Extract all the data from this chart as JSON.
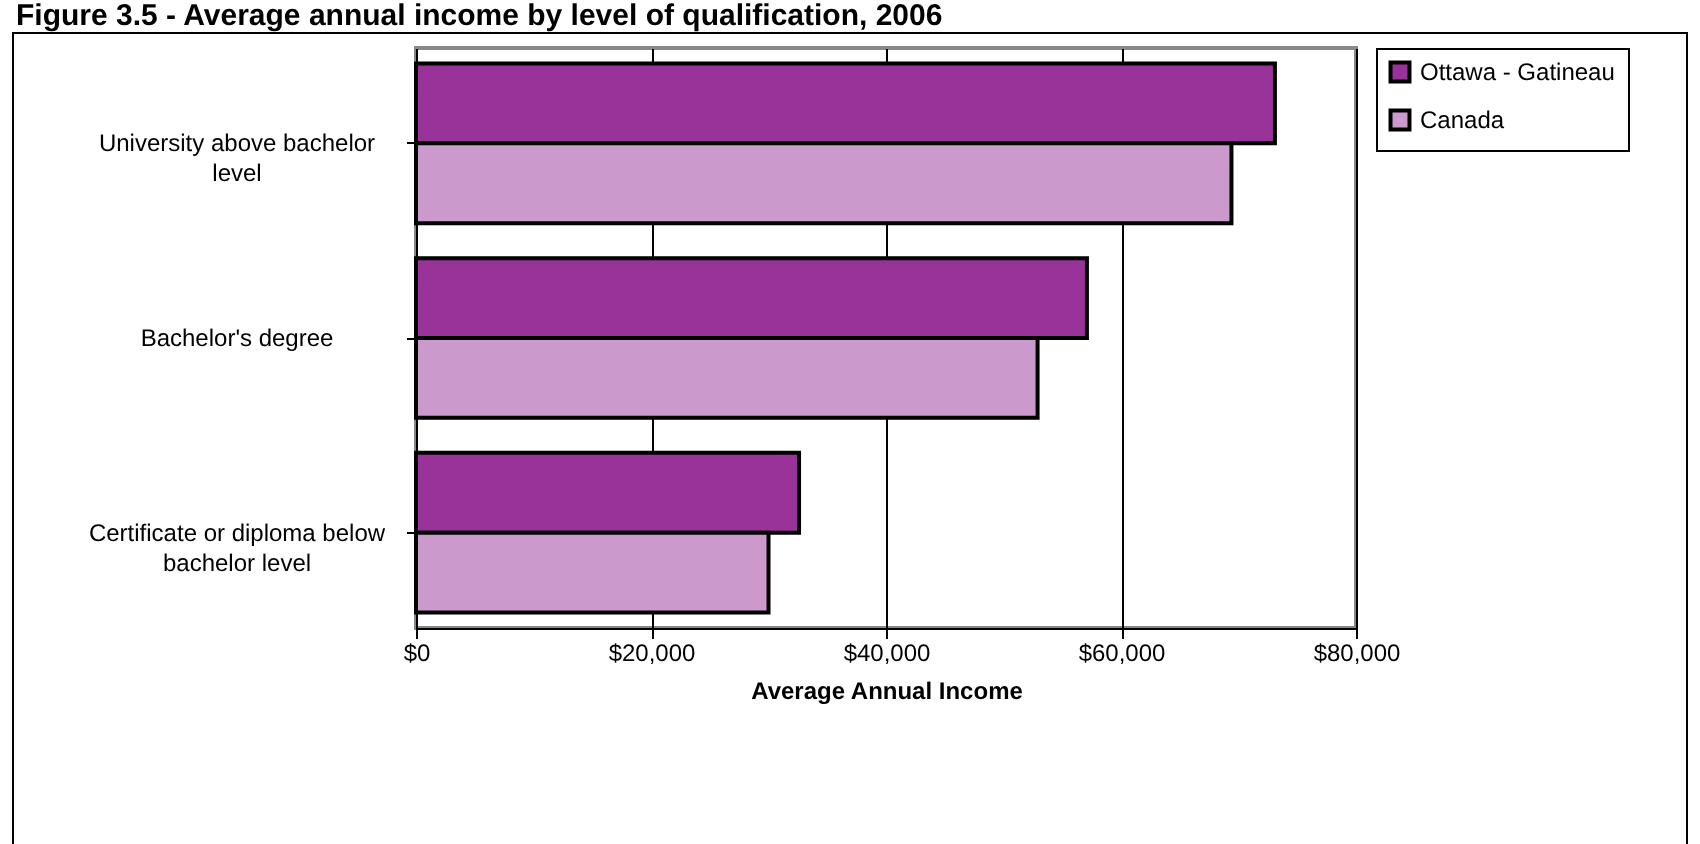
{
  "chart_data": {
    "type": "bar",
    "orientation": "horizontal",
    "title": "Figure 3.5 - Average annual income by level of qualification, 2006",
    "xlabel": "Average Annual Income",
    "categories": [
      "University above bachelor level",
      "Bachelor's degree",
      "Certificate or diploma below bachelor level"
    ],
    "series": [
      {
        "name": "Ottawa - Gatineau",
        "color": "#993399",
        "values": [
          73100,
          57100,
          32600
        ]
      },
      {
        "name": "Canada",
        "color": "#cc99cc",
        "values": [
          69400,
          52900,
          30000
        ]
      }
    ],
    "xlim": [
      0,
      80000
    ],
    "xticks": [
      {
        "value": 0,
        "label": "$0"
      },
      {
        "value": 20000,
        "label": "$20,000"
      },
      {
        "value": 40000,
        "label": "$40,000"
      },
      {
        "value": 60000,
        "label": "$60,000"
      },
      {
        "value": 80000,
        "label": "$80,000"
      }
    ],
    "grid": "x",
    "legend": "right"
  }
}
